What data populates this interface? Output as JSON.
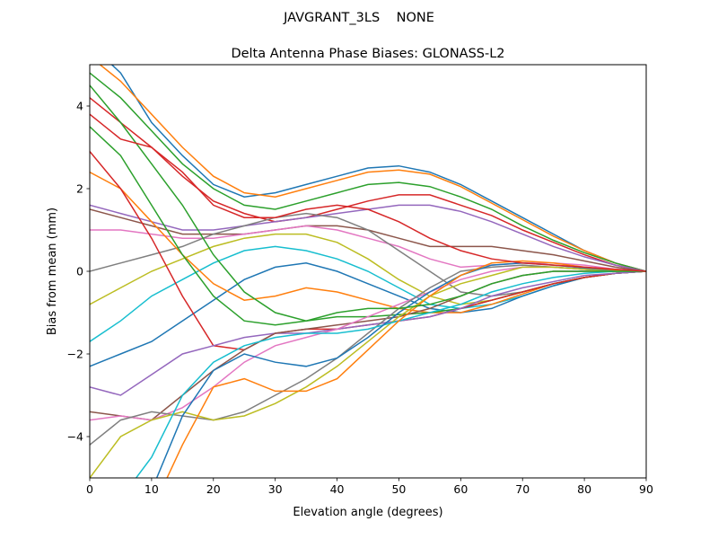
{
  "chart_data": {
    "type": "line",
    "suptitle": "JAVGRANT_3LS    NONE",
    "title": "Delta Antenna Phase Biases: GLONASS-L2",
    "xlabel": "Elevation angle (degrees)",
    "ylabel": "Bias from mean (mm)",
    "xlim": [
      0,
      90
    ],
    "ylim": [
      -5,
      5
    ],
    "xticks": [
      0,
      10,
      20,
      30,
      40,
      50,
      60,
      70,
      80,
      90
    ],
    "yticks": [
      -4,
      -2,
      0,
      2,
      4
    ],
    "grid": false,
    "colors": [
      "#1f77b4",
      "#ff7f0e",
      "#2ca02c",
      "#d62728",
      "#9467bd",
      "#8c564b",
      "#e377c2",
      "#7f7f7f",
      "#bcbd22",
      "#17becf"
    ],
    "x": [
      0,
      5,
      10,
      15,
      20,
      25,
      30,
      35,
      40,
      45,
      50,
      55,
      60,
      65,
      70,
      75,
      80,
      85,
      90
    ],
    "series": [
      {
        "values": [
          5.5,
          4.8,
          3.6,
          2.8,
          2.1,
          1.8,
          1.9,
          2.1,
          2.3,
          2.5,
          2.55,
          2.4,
          2.1,
          1.7,
          1.3,
          0.9,
          0.5,
          0.2,
          0
        ]
      },
      {
        "values": [
          5.2,
          4.6,
          3.8,
          3.0,
          2.3,
          1.9,
          1.8,
          2.0,
          2.2,
          2.4,
          2.45,
          2.35,
          2.05,
          1.65,
          1.25,
          0.85,
          0.5,
          0.2,
          0
        ]
      },
      {
        "values": [
          4.8,
          4.2,
          3.4,
          2.6,
          2.0,
          1.6,
          1.5,
          1.7,
          1.9,
          2.1,
          2.15,
          2.05,
          1.8,
          1.5,
          1.1,
          0.75,
          0.45,
          0.2,
          0
        ]
      },
      {
        "values": [
          4.2,
          3.6,
          3.0,
          2.3,
          1.7,
          1.4,
          1.2,
          1.3,
          1.5,
          1.7,
          1.85,
          1.85,
          1.6,
          1.35,
          1.0,
          0.7,
          0.4,
          0.15,
          0
        ]
      },
      {
        "values": [
          1.6,
          1.4,
          1.2,
          1.0,
          1.0,
          1.1,
          1.2,
          1.3,
          1.4,
          1.5,
          1.6,
          1.6,
          1.45,
          1.2,
          0.9,
          0.6,
          0.35,
          0.15,
          0
        ]
      },
      {
        "values": [
          1.5,
          1.3,
          1.1,
          0.9,
          0.9,
          0.9,
          1.0,
          1.1,
          1.1,
          1.0,
          0.8,
          0.6,
          0.6,
          0.6,
          0.5,
          0.4,
          0.25,
          0.1,
          0
        ]
      },
      {
        "values": [
          1.0,
          1.0,
          0.9,
          0.8,
          0.8,
          0.9,
          1.0,
          1.1,
          1.0,
          0.8,
          0.6,
          0.3,
          0.1,
          0.15,
          0.2,
          0.2,
          0.15,
          0.05,
          0
        ]
      },
      {
        "values": [
          0.0,
          0.2,
          0.4,
          0.6,
          0.9,
          1.1,
          1.3,
          1.4,
          1.3,
          1.0,
          0.5,
          0.0,
          -0.5,
          -0.6,
          -0.5,
          -0.3,
          -0.15,
          -0.05,
          0
        ]
      },
      {
        "values": [
          -0.8,
          -0.4,
          0.0,
          0.3,
          0.6,
          0.8,
          0.9,
          0.9,
          0.7,
          0.3,
          -0.2,
          -0.6,
          -0.8,
          -0.7,
          -0.5,
          -0.3,
          -0.15,
          -0.05,
          0
        ]
      },
      {
        "values": [
          -1.7,
          -1.2,
          -0.6,
          -0.2,
          0.2,
          0.5,
          0.6,
          0.5,
          0.3,
          0.0,
          -0.4,
          -0.8,
          -0.9,
          -0.8,
          -0.6,
          -0.35,
          -0.15,
          -0.05,
          0
        ]
      },
      {
        "values": [
          -2.3,
          -2.0,
          -1.7,
          -1.2,
          -0.7,
          -0.2,
          0.1,
          0.2,
          0.0,
          -0.3,
          -0.6,
          -0.9,
          -1.0,
          -0.9,
          -0.6,
          -0.35,
          -0.15,
          -0.05,
          0
        ]
      },
      {
        "values": [
          2.4,
          2.0,
          1.2,
          0.4,
          -0.3,
          -0.7,
          -0.6,
          -0.4,
          -0.5,
          -0.7,
          -0.9,
          -1.0,
          -1.0,
          -0.8,
          -0.55,
          -0.3,
          -0.15,
          -0.05,
          0
        ]
      },
      {
        "values": [
          3.5,
          2.8,
          1.6,
          0.4,
          -0.6,
          -1.2,
          -1.3,
          -1.2,
          -1.1,
          -1.1,
          -1.05,
          -1.0,
          -0.9,
          -0.7,
          -0.5,
          -0.3,
          -0.15,
          -0.05,
          0
        ]
      },
      {
        "values": [
          2.9,
          2.0,
          0.8,
          -0.6,
          -1.8,
          -1.9,
          -1.5,
          -1.4,
          -1.4,
          -1.3,
          -1.2,
          -1.1,
          -0.9,
          -0.7,
          -0.5,
          -0.3,
          -0.15,
          -0.05,
          0
        ]
      },
      {
        "values": [
          -2.8,
          -3.0,
          -2.5,
          -2.0,
          -1.8,
          -1.6,
          -1.5,
          -1.5,
          -1.4,
          -1.3,
          -1.2,
          -1.1,
          -0.9,
          -0.6,
          -0.4,
          -0.25,
          -0.1,
          -0.05,
          0
        ]
      },
      {
        "values": [
          -3.4,
          -3.5,
          -3.6,
          -3.0,
          -2.4,
          -1.9,
          -1.5,
          -1.4,
          -1.3,
          -1.2,
          -1.1,
          -0.9,
          -0.6,
          -0.3,
          -0.1,
          0.0,
          0.0,
          0.0,
          0
        ]
      },
      {
        "values": [
          -3.6,
          -3.5,
          -3.6,
          -3.3,
          -2.8,
          -2.2,
          -1.8,
          -1.6,
          -1.4,
          -1.1,
          -0.8,
          -0.5,
          -0.2,
          0.0,
          0.1,
          0.1,
          0.05,
          0.0,
          0
        ]
      },
      {
        "values": [
          -4.2,
          -3.6,
          -3.4,
          -3.5,
          -3.6,
          -3.4,
          -3.0,
          -2.6,
          -2.1,
          -1.5,
          -0.9,
          -0.4,
          0.0,
          0.1,
          0.15,
          0.1,
          0.05,
          0.0,
          0
        ]
      },
      {
        "values": [
          -5.0,
          -4.0,
          -3.6,
          -3.4,
          -3.6,
          -3.5,
          -3.2,
          -2.8,
          -2.3,
          -1.7,
          -1.1,
          -0.6,
          -0.3,
          -0.1,
          0.1,
          0.1,
          0.05,
          0.0,
          0
        ]
      },
      {
        "values": [
          -6.0,
          -5.5,
          -4.5,
          -3.0,
          -2.2,
          -1.8,
          -1.6,
          -1.5,
          -1.5,
          -1.4,
          -1.2,
          -1.0,
          -0.8,
          -0.5,
          -0.3,
          -0.15,
          -0.05,
          0,
          0
        ]
      },
      {
        "values": [
          -6.0,
          -5.8,
          -5.3,
          -3.5,
          -2.4,
          -2.0,
          -2.2,
          -2.3,
          -2.1,
          -1.6,
          -1.0,
          -0.5,
          -0.1,
          0.15,
          0.2,
          0.15,
          0.08,
          0.02,
          0
        ]
      },
      {
        "values": [
          -6.0,
          -6.0,
          -5.8,
          -4.2,
          -2.8,
          -2.6,
          -2.9,
          -2.9,
          -2.6,
          -1.9,
          -1.2,
          -0.6,
          -0.1,
          0.2,
          0.25,
          0.2,
          0.1,
          0.03,
          0
        ]
      },
      {
        "values": [
          4.5,
          3.6,
          2.6,
          1.6,
          0.4,
          -0.5,
          -1.0,
          -1.2,
          -1.0,
          -0.9,
          -0.9,
          -0.8,
          -0.6,
          -0.3,
          -0.1,
          0.0,
          0.0,
          0.0,
          0
        ]
      },
      {
        "values": [
          3.8,
          3.2,
          3.0,
          2.4,
          1.6,
          1.3,
          1.3,
          1.5,
          1.6,
          1.5,
          1.2,
          0.8,
          0.5,
          0.3,
          0.2,
          0.15,
          0.1,
          0.05,
          0
        ]
      }
    ]
  }
}
